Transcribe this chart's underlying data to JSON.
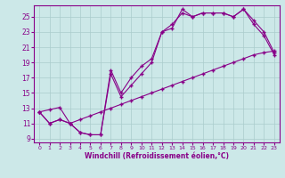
{
  "xlabel": "Windchill (Refroidissement éolien,°C)",
  "bg_color": "#cce8e8",
  "line_color": "#880088",
  "grid_color": "#aacccc",
  "xlim": [
    -0.5,
    23.5
  ],
  "ylim": [
    8.5,
    26.5
  ],
  "yticks": [
    9,
    11,
    13,
    15,
    17,
    19,
    21,
    23,
    25
  ],
  "xticks": [
    0,
    1,
    2,
    3,
    4,
    5,
    6,
    7,
    8,
    9,
    10,
    11,
    12,
    13,
    14,
    15,
    16,
    17,
    18,
    19,
    20,
    21,
    22,
    23
  ],
  "curve1_x": [
    0,
    1,
    2,
    3,
    4,
    5,
    6,
    7,
    8,
    9,
    10,
    11,
    12,
    13,
    14,
    15,
    16,
    17,
    18,
    19,
    20,
    21,
    22,
    23
  ],
  "curve1_y": [
    12.5,
    11.0,
    11.5,
    11.0,
    9.8,
    9.5,
    9.5,
    18.0,
    15.0,
    17.0,
    18.5,
    19.5,
    23.0,
    23.5,
    26.0,
    25.0,
    25.5,
    25.5,
    25.5,
    25.0,
    26.0,
    24.0,
    22.5,
    20.0
  ],
  "curve2_x": [
    0,
    1,
    2,
    3,
    4,
    5,
    6,
    7,
    8,
    9,
    10,
    11,
    12,
    13,
    14,
    15,
    16,
    17,
    18,
    19,
    20,
    21,
    22,
    23
  ],
  "curve2_y": [
    12.5,
    11.0,
    11.5,
    11.0,
    9.8,
    9.5,
    9.5,
    17.5,
    14.5,
    16.0,
    17.5,
    19.0,
    23.0,
    24.0,
    25.5,
    25.0,
    25.5,
    25.5,
    25.5,
    25.0,
    26.0,
    24.5,
    23.0,
    20.3
  ],
  "line3_x": [
    0,
    1,
    2,
    3,
    4,
    5,
    6,
    7,
    8,
    9,
    10,
    11,
    12,
    13,
    14,
    15,
    16,
    17,
    18,
    19,
    20,
    21,
    22,
    23
  ],
  "line3_y": [
    12.5,
    12.8,
    13.1,
    11.0,
    11.5,
    12.0,
    12.5,
    13.0,
    13.5,
    14.0,
    14.5,
    15.0,
    15.5,
    16.0,
    16.5,
    17.0,
    17.5,
    18.0,
    18.5,
    19.0,
    19.5,
    20.0,
    20.3,
    20.5
  ]
}
